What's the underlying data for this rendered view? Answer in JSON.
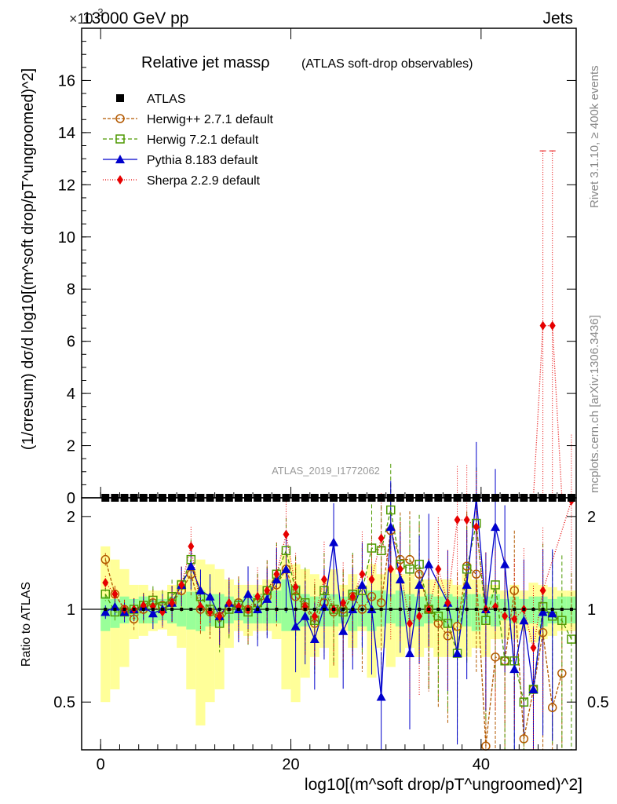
{
  "header": {
    "energy_label": "13000 GeV pp",
    "category_label": "Jets",
    "exponent_label": "×10",
    "exponent_power": "-3"
  },
  "side_labels": {
    "rivet": "Rivet 3.1.10, ≥ 400k events",
    "mcplots": "mcplots.cern.ch [arXiv:1306.3436]"
  },
  "watermark": "ATLAS_2019_I1772062",
  "chart_data": {
    "type": "line",
    "title": "Relative jet massρ",
    "subtitle": "(ATLAS soft-drop observables)",
    "xlabel": "log10[(m^soft drop/pT^ungroomed)^2]",
    "ylabel": "(1/σresum) dσ/d log10[(m^soft drop/pT^ungroomed)^2]",
    "ratio_ylabel": "Ratio to ATLAS",
    "xlim": [
      -2,
      50
    ],
    "ylim_main": [
      0,
      18
    ],
    "ylim_ratio": [
      0.35,
      2.3
    ],
    "x_ticks": [
      0,
      20,
      40
    ],
    "y_ticks_main": [
      0,
      2,
      4,
      6,
      8,
      10,
      12,
      14,
      16
    ],
    "y_ticks_ratio": [
      0.5,
      1,
      2
    ],
    "bins": [
      0.5,
      1.5,
      2.5,
      3.5,
      4.5,
      5.5,
      6.5,
      7.5,
      8.5,
      9.5,
      10.5,
      11.5,
      12.5,
      13.5,
      14.5,
      15.5,
      16.5,
      17.5,
      18.5,
      19.5,
      20.5,
      21.5,
      22.5,
      23.5,
      24.5,
      25.5,
      26.5,
      27.5,
      28.5,
      29.5,
      30.5,
      31.5,
      32.5,
      33.5,
      34.5,
      35.5,
      36.5,
      37.5,
      38.5,
      39.5,
      40.5,
      41.5,
      42.5,
      43.5,
      44.5,
      45.5,
      46.5,
      47.5,
      48.5,
      49.5
    ],
    "band_inner": [
      [
        0.85,
        1.1
      ],
      [
        0.87,
        1.08
      ],
      [
        0.9,
        1.1
      ],
      [
        0.92,
        1.08
      ],
      [
        0.9,
        1.1
      ],
      [
        0.9,
        1.08
      ],
      [
        0.92,
        1.08
      ],
      [
        0.9,
        1.1
      ],
      [
        0.88,
        1.12
      ],
      [
        0.86,
        1.14
      ],
      [
        0.85,
        1.15
      ],
      [
        0.88,
        1.12
      ],
      [
        0.88,
        1.12
      ],
      [
        0.9,
        1.1
      ],
      [
        0.92,
        1.08
      ],
      [
        0.9,
        1.1
      ],
      [
        0.9,
        1.12
      ],
      [
        0.9,
        1.12
      ],
      [
        0.9,
        1.15
      ],
      [
        0.85,
        1.25
      ],
      [
        0.85,
        1.2
      ],
      [
        0.88,
        1.12
      ],
      [
        0.9,
        1.1
      ],
      [
        0.88,
        1.12
      ],
      [
        0.88,
        1.12
      ],
      [
        0.9,
        1.1
      ],
      [
        0.85,
        1.15
      ],
      [
        0.88,
        1.12
      ],
      [
        0.85,
        1.15
      ],
      [
        0.88,
        1.15
      ],
      [
        0.9,
        1.12
      ],
      [
        0.88,
        1.15
      ],
      [
        0.9,
        1.12
      ],
      [
        0.88,
        1.1
      ],
      [
        0.9,
        1.12
      ],
      [
        0.92,
        1.1
      ],
      [
        0.88,
        1.12
      ],
      [
        0.9,
        1.1
      ],
      [
        0.88,
        1.12
      ],
      [
        0.85,
        1.12
      ],
      [
        0.9,
        1.1
      ],
      [
        0.88,
        1.12
      ],
      [
        0.92,
        1.08
      ],
      [
        0.9,
        1.1
      ],
      [
        0.92,
        1.08
      ],
      [
        0.9,
        1.1
      ],
      [
        0.88,
        1.1
      ],
      [
        0.9,
        1.08
      ],
      [
        0.9,
        1.1
      ],
      [
        0.9,
        1.1
      ]
    ],
    "band_outer": [
      [
        0.5,
        1.6
      ],
      [
        0.55,
        1.45
      ],
      [
        0.65,
        1.35
      ],
      [
        0.8,
        1.2
      ],
      [
        0.82,
        1.2
      ],
      [
        0.85,
        1.15
      ],
      [
        0.86,
        1.15
      ],
      [
        0.82,
        1.2
      ],
      [
        0.75,
        1.25
      ],
      [
        0.55,
        1.35
      ],
      [
        0.42,
        1.45
      ],
      [
        0.5,
        1.4
      ],
      [
        0.55,
        1.35
      ],
      [
        0.75,
        1.25
      ],
      [
        0.85,
        1.2
      ],
      [
        0.82,
        1.2
      ],
      [
        0.85,
        1.2
      ],
      [
        0.85,
        1.25
      ],
      [
        0.8,
        1.3
      ],
      [
        0.55,
        1.5
      ],
      [
        0.5,
        1.4
      ],
      [
        0.6,
        1.35
      ],
      [
        0.7,
        1.3
      ],
      [
        0.75,
        1.25
      ],
      [
        0.6,
        1.35
      ],
      [
        0.85,
        1.2
      ],
      [
        0.75,
        1.3
      ],
      [
        0.85,
        1.2
      ],
      [
        0.6,
        1.4
      ],
      [
        0.75,
        1.3
      ],
      [
        0.65,
        1.35
      ],
      [
        0.7,
        1.3
      ],
      [
        0.75,
        1.3
      ],
      [
        0.7,
        1.25
      ],
      [
        0.75,
        1.25
      ],
      [
        0.7,
        1.25
      ],
      [
        0.7,
        1.25
      ],
      [
        0.75,
        1.2
      ],
      [
        0.7,
        1.3
      ],
      [
        0.75,
        1.25
      ],
      [
        0.7,
        1.2
      ],
      [
        0.8,
        1.2
      ],
      [
        0.8,
        1.15
      ],
      [
        0.8,
        1.2
      ],
      [
        0.85,
        1.15
      ],
      [
        0.78,
        1.22
      ],
      [
        0.8,
        1.2
      ],
      [
        0.82,
        1.18
      ],
      [
        0.85,
        1.15
      ],
      [
        0.85,
        1.15
      ]
    ],
    "series": [
      {
        "name": "ATLAS",
        "color": "#000000",
        "marker": "square",
        "main_values": [
          0,
          0,
          0,
          0,
          0,
          0,
          0,
          0,
          0,
          0,
          0,
          0,
          0,
          0,
          0,
          0,
          0,
          0,
          0,
          0,
          0,
          0,
          0,
          0,
          0,
          0,
          0,
          0,
          0,
          0,
          0,
          0,
          0,
          0,
          0,
          0,
          0,
          0,
          0,
          0,
          0,
          0,
          0,
          0,
          0,
          0,
          0,
          0,
          0,
          0
        ],
        "ratio": [
          1,
          1,
          1,
          1,
          1,
          1,
          1,
          1,
          1,
          1,
          1,
          1,
          1,
          1,
          1,
          1,
          1,
          1,
          1,
          1,
          1,
          1,
          1,
          1,
          1,
          1,
          1,
          1,
          1,
          1,
          1,
          1,
          1,
          1,
          1,
          1,
          1,
          1,
          1,
          1,
          1,
          1,
          1,
          1,
          1,
          1,
          1,
          1,
          1,
          1
        ]
      },
      {
        "name": "Herwig++ 2.7.1 default",
        "color": "#b35900",
        "marker": "circle",
        "dash": "4,2",
        "main_values": [
          0,
          0,
          0,
          0,
          0,
          0,
          0,
          0,
          0,
          0,
          0,
          0,
          0,
          0,
          0,
          0,
          0,
          0,
          0,
          0,
          0,
          0,
          0,
          0,
          0,
          0,
          0,
          0,
          0,
          0,
          0,
          0,
          0,
          0,
          0,
          0,
          0,
          0,
          0,
          0,
          0,
          0,
          0,
          0,
          0,
          0,
          0,
          0,
          0,
          0
        ],
        "ratio": [
          1.45,
          1.12,
          1.0,
          0.93,
          1.0,
          1.05,
          1.03,
          1.05,
          1.15,
          1.3,
          1.0,
          0.98,
          0.95,
          1.02,
          1.05,
          1.0,
          1.05,
          1.1,
          1.2,
          1.35,
          1.1,
          1.02,
          0.9,
          1.05,
          0.98,
          1.0,
          1.1,
          1.0,
          1.1,
          1.05,
          1.8,
          1.45,
          1.45,
          1.3,
          1.0,
          0.9,
          0.82,
          0.88,
          1.38,
          1.3,
          0.36,
          0.7,
          0.68,
          1.15,
          0.38,
          0.55,
          0.84,
          0.48,
          0.62,
          0.2
        ]
      },
      {
        "name": "Herwig 7.2.1 default",
        "color": "#4d9900",
        "marker": "square-open",
        "dash": "5,3",
        "main_values": [
          0,
          0,
          0,
          0,
          0,
          0,
          0,
          0,
          0,
          0,
          0,
          0,
          0,
          0,
          0,
          0,
          0,
          0,
          0,
          0,
          0,
          0,
          0,
          0,
          0,
          0,
          0,
          0,
          0,
          0,
          0,
          0,
          0,
          0,
          0,
          0,
          0,
          0,
          0,
          0,
          0,
          0,
          0,
          0,
          0,
          0,
          0,
          0,
          0,
          0
        ],
        "ratio": [
          1.12,
          0.98,
          0.98,
          1.0,
          1.03,
          1.07,
          1.02,
          1.1,
          1.2,
          1.45,
          1.1,
          1.0,
          0.9,
          1.0,
          1.03,
          0.98,
          1.05,
          1.15,
          1.3,
          1.55,
          1.15,
          1.05,
          0.92,
          1.15,
          1.0,
          0.98,
          1.12,
          1.15,
          1.58,
          1.55,
          2.1,
          1.4,
          1.35,
          1.4,
          1.0,
          0.95,
          0.9,
          0.72,
          1.35,
          1.9,
          0.92,
          1.2,
          0.68,
          0.68,
          0.5,
          0.55,
          1.02,
          0.95,
          0.92,
          0.8
        ]
      },
      {
        "name": "Pythia 8.183 default",
        "color": "#0000cc",
        "marker": "triangle",
        "dash": "",
        "main_values": [
          0,
          0,
          0,
          0,
          0,
          0,
          0,
          0,
          0,
          0,
          0,
          0,
          0,
          0,
          0,
          0,
          0,
          0,
          0,
          0,
          0,
          0,
          0,
          0,
          0,
          0,
          0,
          0,
          0,
          0,
          0,
          0,
          0,
          0,
          0,
          0,
          0,
          0,
          0,
          0,
          0,
          0,
          0,
          0,
          0,
          0,
          0,
          0,
          0,
          0
        ],
        "ratio": [
          0.98,
          1.02,
          0.98,
          1.0,
          1.02,
          0.97,
          1.0,
          1.05,
          1.2,
          1.38,
          1.15,
          1.1,
          0.95,
          1.05,
          1.0,
          1.12,
          1.0,
          1.08,
          1.25,
          1.35,
          0.88,
          0.95,
          0.8,
          1.02,
          1.65,
          0.85,
          1.0,
          1.2,
          1.0,
          0.52,
          1.85,
          1.25,
          0.72,
          1.2,
          1.4,
          0.25,
          1.05,
          0.72,
          1.2,
          2.3,
          1.0,
          1.85,
          1.4,
          0.64,
          0.92,
          0.55,
          0.98,
          0.97,
          0.2,
          0.2
        ]
      },
      {
        "name": "Sherpa 2.2.9 default",
        "color": "#e60000",
        "marker": "diamond",
        "dash": "1,2",
        "main_values": [
          0,
          0,
          0,
          0,
          0,
          0,
          0,
          0,
          0,
          0,
          0,
          0,
          0,
          0,
          0,
          0,
          0,
          0,
          0,
          0,
          0,
          0,
          0,
          0,
          0,
          0,
          0,
          0,
          0,
          0,
          0,
          0,
          0,
          0,
          0,
          0,
          0,
          0,
          0,
          0,
          0,
          0,
          0,
          0,
          0,
          0,
          6.6,
          6.6,
          0,
          0
        ],
        "ratio": [
          1.22,
          1.12,
          1.0,
          1.0,
          1.03,
          1.02,
          0.98,
          1.05,
          1.2,
          1.6,
          1.02,
          0.98,
          0.95,
          1.05,
          1.02,
          1.0,
          1.1,
          1.15,
          1.3,
          1.75,
          1.18,
          1.02,
          0.95,
          1.25,
          1.0,
          1.05,
          1.1,
          1.3,
          1.25,
          1.7,
          1.35,
          1.35,
          0.9,
          0.95,
          1.0,
          1.35,
          1.05,
          1.95,
          1.95,
          1.85,
          1.0,
          1.02,
          0.95,
          0.93,
          1.0,
          0.75,
          1.15,
          0.2,
          0.2,
          2.25
        ]
      }
    ],
    "sherpa_error_bins": [
      46.5,
      47.5
    ],
    "sherpa_error_high": 13.3
  }
}
